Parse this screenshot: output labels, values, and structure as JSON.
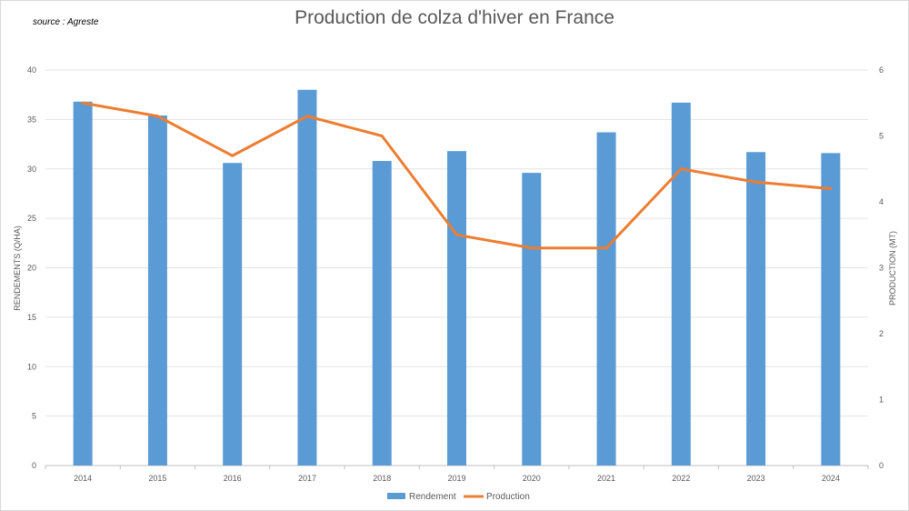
{
  "header": {
    "source": "source : Agreste",
    "title": "Production de colza d'hiver en France"
  },
  "chart_data": {
    "type": "bar",
    "title": "Production de colza d'hiver en France",
    "categories": [
      "2014",
      "2015",
      "2016",
      "2017",
      "2018",
      "2019",
      "2020",
      "2021",
      "2022",
      "2023",
      "2024"
    ],
    "series": [
      {
        "name": "Rendement",
        "type": "bar",
        "axis": "left",
        "color": "#5b9bd5",
        "values": [
          36.8,
          35.4,
          30.6,
          38.0,
          30.8,
          31.8,
          29.6,
          33.7,
          36.7,
          31.7,
          31.6
        ]
      },
      {
        "name": "Production",
        "type": "line",
        "axis": "right",
        "color": "#ed7d31",
        "values": [
          5.5,
          5.3,
          4.7,
          5.3,
          5.0,
          3.5,
          3.3,
          3.3,
          4.5,
          4.3,
          4.2
        ]
      }
    ],
    "ylabel": "RENDEMENTS (Q/HA)",
    "ylim": [
      0,
      40
    ],
    "yticks": [
      0,
      5,
      10,
      15,
      20,
      25,
      30,
      35,
      40
    ],
    "y2label": "PRODUCTION (MT)",
    "y2lim": [
      0,
      6
    ],
    "y2ticks": [
      0,
      1,
      2,
      3,
      4,
      5,
      6
    ],
    "grid": true,
    "legend": "bottom"
  }
}
